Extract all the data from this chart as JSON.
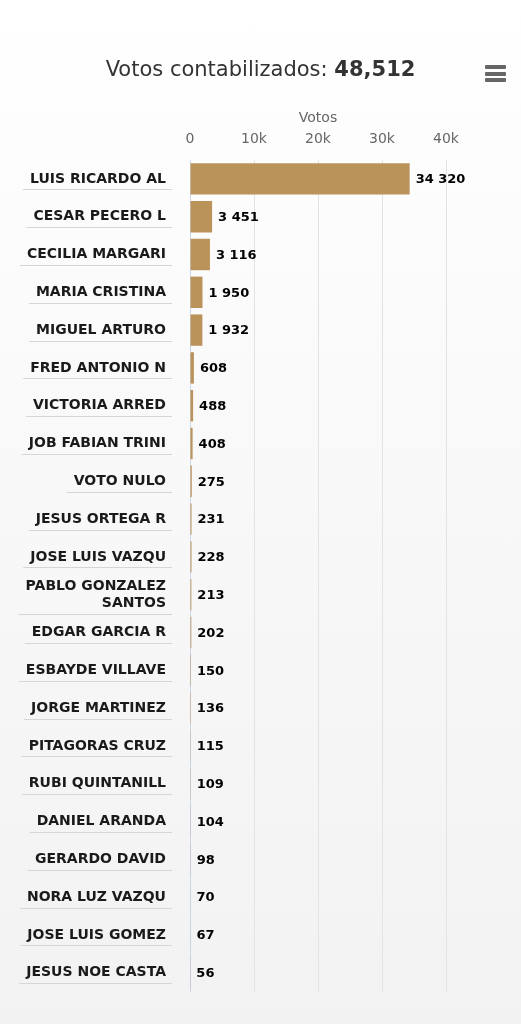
{
  "chart_data": {
    "type": "bar",
    "orientation": "horizontal",
    "title": "Votos contabilizados: 48,512",
    "xlabel": "Votos",
    "categories": [
      "LUIS RICARDO AL",
      "CESAR PECERO L",
      "CECILIA MARGARI",
      "MARIA CRISTINA",
      "MIGUEL ARTURO",
      "FRED ANTONIO N",
      "VICTORIA ARRED",
      "JOB FABIAN TRINI",
      "VOTO NULO",
      "JESUS ORTEGA R",
      "JOSE LUIS VAZQU",
      "PABLO GONZALEZ SANTOS",
      "EDGAR GARCIA R",
      "ESBAYDE VILLAVE",
      "JORGE MARTINEZ",
      "PITAGORAS CRUZ",
      "RUBI QUINTANILL",
      "DANIEL ARANDA",
      "GERARDO DAVID",
      "NORA LUZ VAZQU",
      "JOSE LUIS GOMEZ",
      "JESUS NOE CASTA"
    ],
    "values": [
      34320,
      3451,
      3116,
      1950,
      1932,
      608,
      488,
      408,
      275,
      231,
      228,
      213,
      202,
      150,
      136,
      115,
      109,
      104,
      98,
      70,
      67,
      56
    ],
    "value_labels": [
      "34 320",
      "3 451",
      "3 116",
      "1 950",
      "1 932",
      "608",
      "488",
      "408",
      "275",
      "231",
      "228",
      "213",
      "202",
      "150",
      "136",
      "115",
      "109",
      "104",
      "98",
      "70",
      "67",
      "56"
    ],
    "color": "#b9935a",
    "xlim": [
      0,
      40000
    ],
    "xticks": [
      0,
      {
        "value": 10000,
        "label": "10k"
      },
      {
        "value": 20000,
        "label": "20k"
      },
      {
        "value": 30000,
        "label": "30k"
      },
      {
        "value": 40000,
        "label": "40k"
      }
    ],
    "grid": "x"
  }
}
